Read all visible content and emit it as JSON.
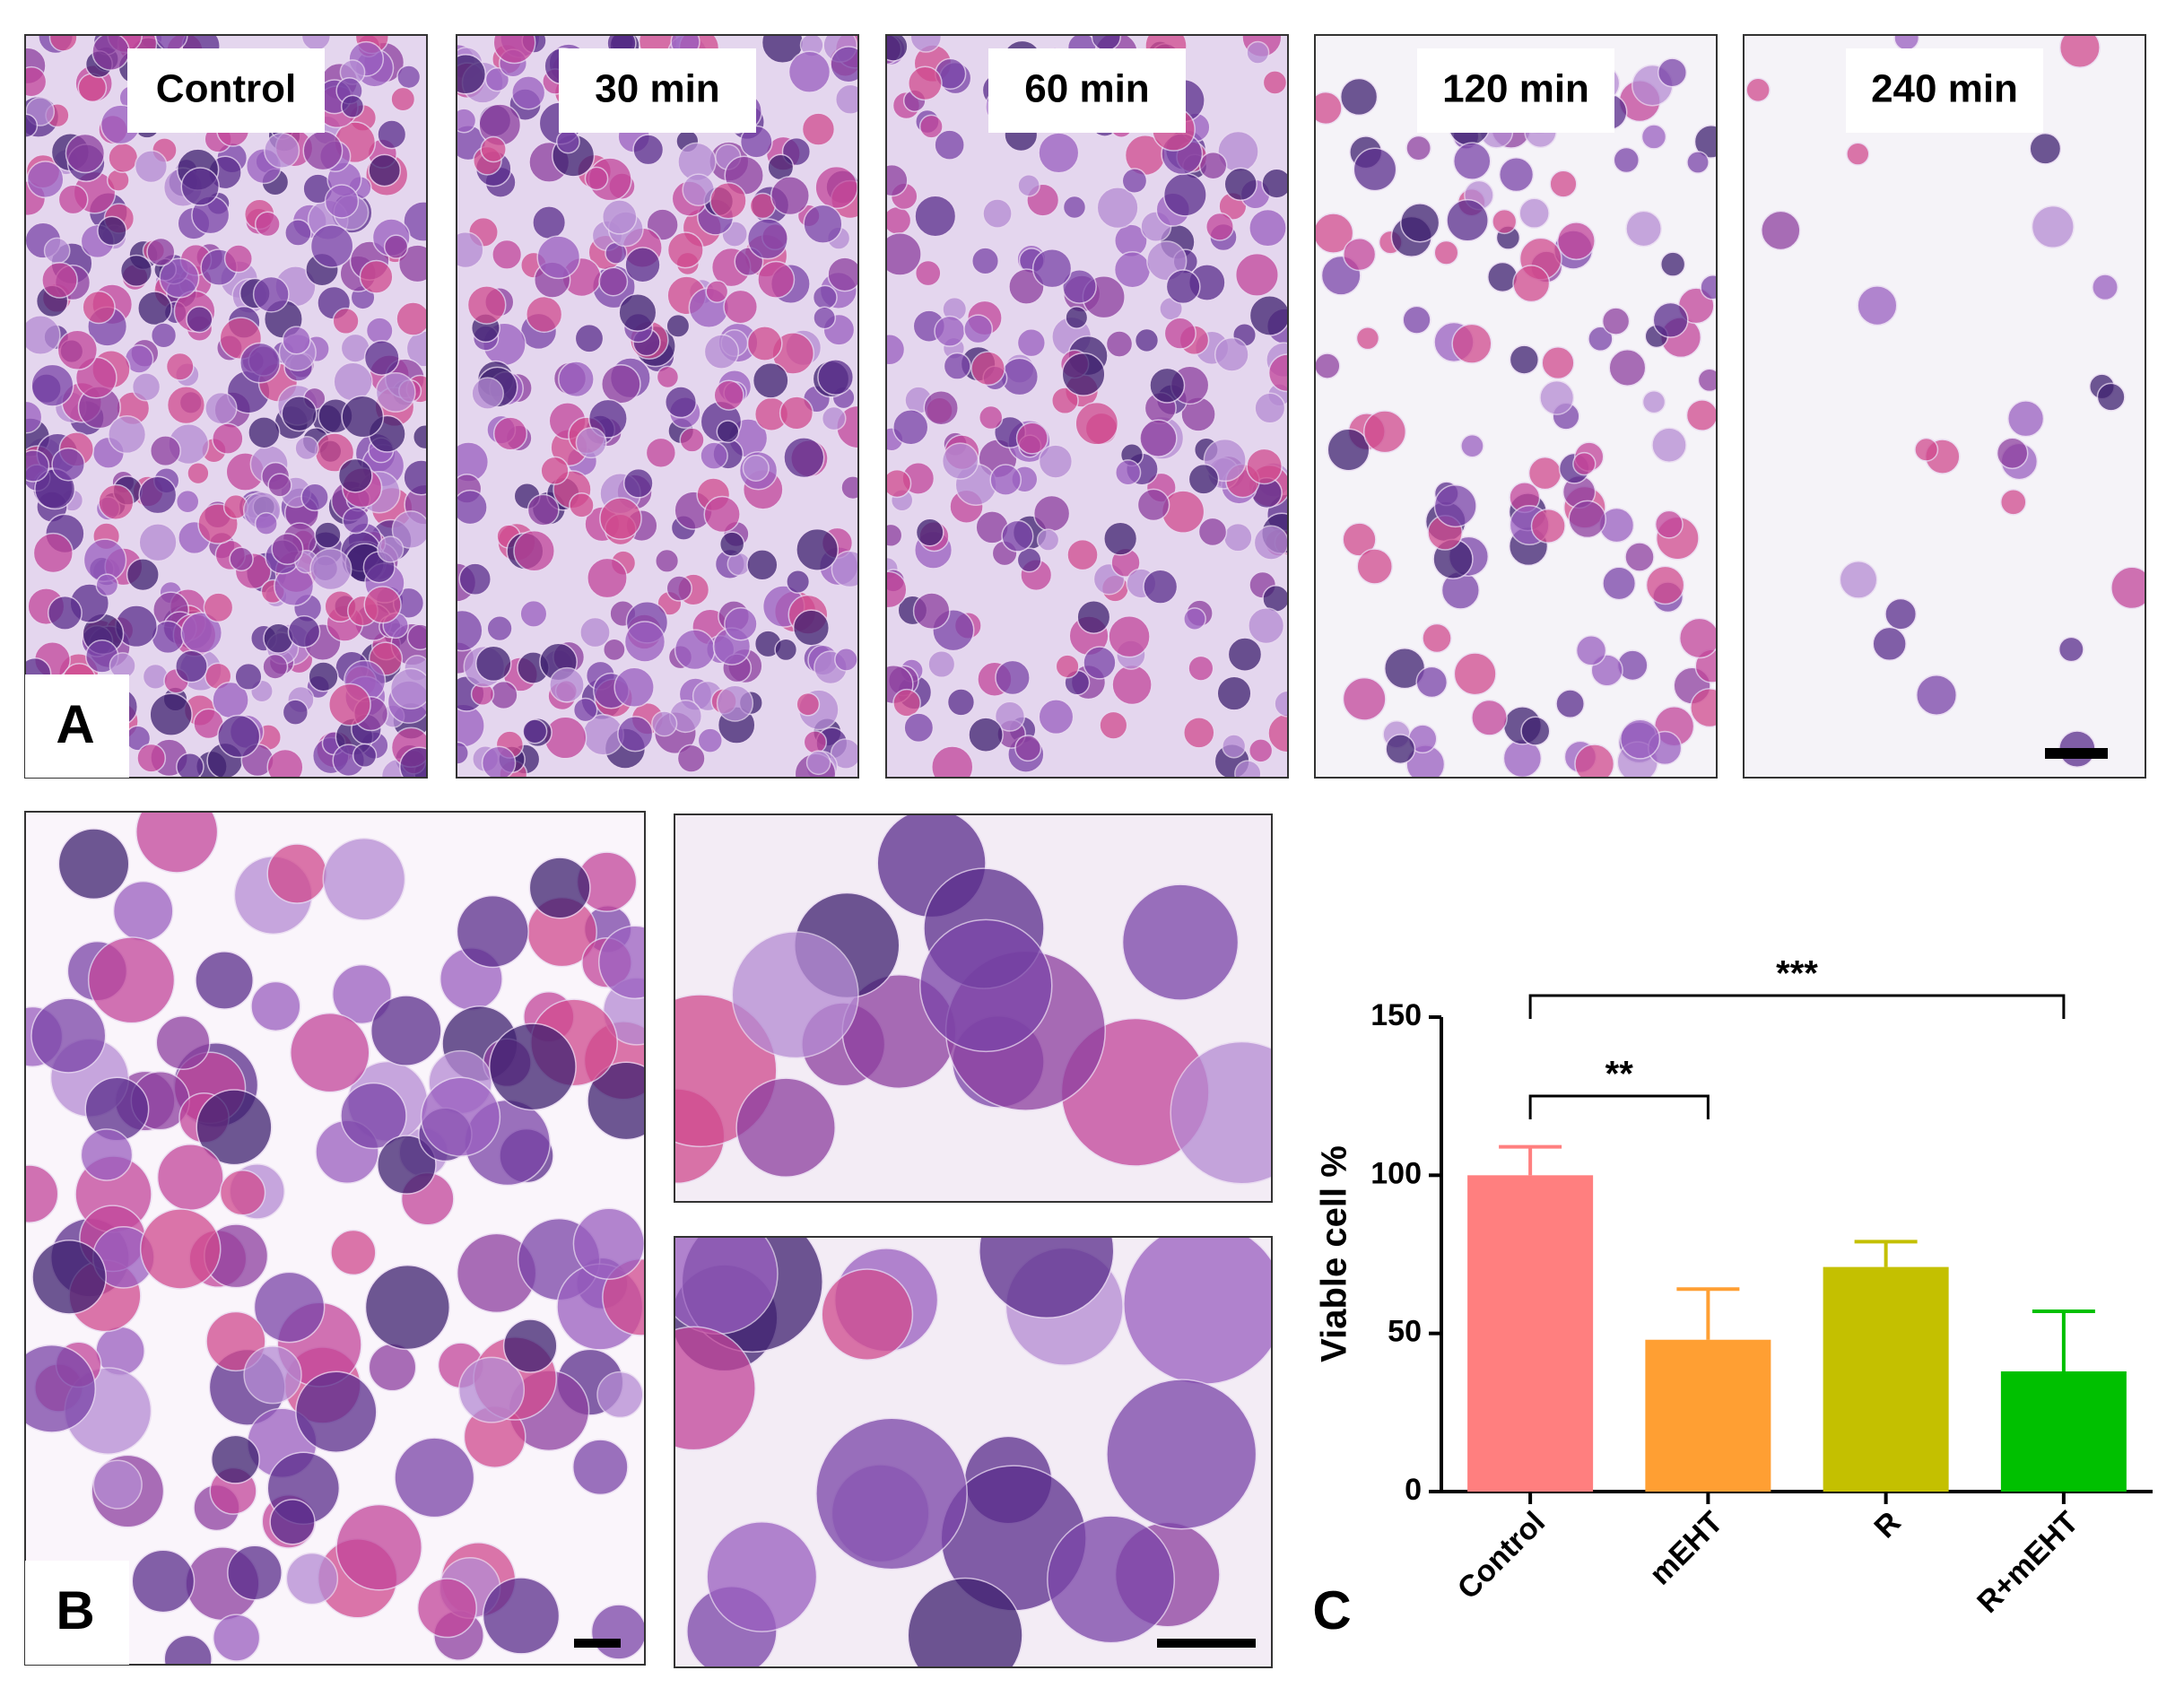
{
  "panel_a": {
    "label": "A",
    "images": [
      "Control",
      "30 min",
      "60 min",
      "120 min",
      "240 min"
    ]
  },
  "panel_b": {
    "label": "B"
  },
  "chart_data": {
    "type": "bar",
    "label": "C",
    "ylabel": "Viable cell %",
    "categories": [
      "Control",
      "mEHT",
      "R",
      "R+mEHT"
    ],
    "values": [
      100,
      48,
      71,
      38
    ],
    "errors": [
      9,
      16,
      8,
      19
    ],
    "colors": [
      "#ff7f7f",
      "#ff9f33",
      "#c4c000",
      "#00c000"
    ],
    "ylim": [
      0,
      150
    ],
    "yticks": [
      0,
      50,
      100,
      150
    ],
    "significance": [
      "**",
      "***"
    ]
  }
}
